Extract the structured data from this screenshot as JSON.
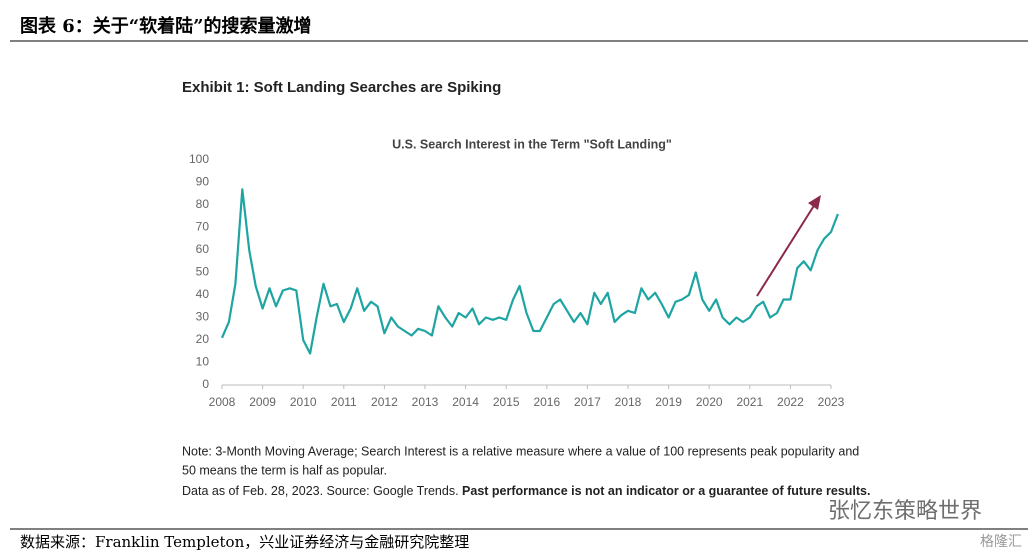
{
  "header": {
    "title": "图表 6：关于“软着陆”的搜索量激增"
  },
  "exhibit_title": "Exhibit 1: Soft Landing Searches are Spiking",
  "chart_data": {
    "type": "line",
    "title": "U.S. Search Interest in the Term \"Soft Landing\"",
    "x": [
      2008,
      2008.17,
      2008.33,
      2008.5,
      2008.67,
      2008.83,
      2009,
      2009.17,
      2009.33,
      2009.5,
      2009.67,
      2009.83,
      2010,
      2010.17,
      2010.33,
      2010.5,
      2010.67,
      2010.83,
      2011,
      2011.17,
      2011.33,
      2011.5,
      2011.67,
      2011.83,
      2012,
      2012.17,
      2012.33,
      2012.5,
      2012.67,
      2012.83,
      2013,
      2013.17,
      2013.33,
      2013.5,
      2013.67,
      2013.83,
      2014,
      2014.17,
      2014.33,
      2014.5,
      2014.67,
      2014.83,
      2015,
      2015.17,
      2015.33,
      2015.5,
      2015.67,
      2015.83,
      2016,
      2016.17,
      2016.33,
      2016.5,
      2016.67,
      2016.83,
      2017,
      2017.17,
      2017.33,
      2017.5,
      2017.67,
      2017.83,
      2018,
      2018.17,
      2018.33,
      2018.5,
      2018.67,
      2018.83,
      2019,
      2019.17,
      2019.33,
      2019.5,
      2019.67,
      2019.83,
      2020,
      2020.17,
      2020.33,
      2020.5,
      2020.67,
      2020.83,
      2021,
      2021.17,
      2021.33,
      2021.5,
      2021.67,
      2021.83,
      2022,
      2022.17,
      2022.33,
      2022.5,
      2022.67,
      2022.83,
      2023,
      2023.17
    ],
    "values": [
      21,
      28,
      45,
      87,
      60,
      44,
      34,
      43,
      35,
      42,
      43,
      42,
      20,
      14,
      30,
      45,
      35,
      36,
      28,
      34,
      43,
      33,
      37,
      35,
      23,
      30,
      26,
      24,
      22,
      25,
      24,
      22,
      35,
      30,
      26,
      32,
      30,
      34,
      27,
      30,
      29,
      30,
      29,
      38,
      44,
      32,
      24,
      24,
      30,
      36,
      38,
      33,
      28,
      32,
      27,
      41,
      36,
      41,
      28,
      31,
      33,
      32,
      43,
      38,
      41,
      36,
      30,
      37,
      38,
      40,
      50,
      38,
      33,
      38,
      30,
      27,
      30,
      28,
      30,
      35,
      37,
      30,
      32,
      38,
      38,
      52,
      55,
      51,
      60,
      65,
      68,
      76
    ],
    "color": "#1ea5a3",
    "xlim": [
      2008,
      2023
    ],
    "xticks": [
      2008,
      2009,
      2010,
      2011,
      2012,
      2013,
      2014,
      2015,
      2016,
      2017,
      2018,
      2019,
      2020,
      2021,
      2022,
      2023
    ],
    "ylim": [
      0,
      100
    ],
    "yticks": [
      0,
      10,
      20,
      30,
      40,
      50,
      60,
      70,
      80,
      90,
      100
    ],
    "grid": false
  },
  "notes": [
    "Note: 3-Month Moving Average; Search Interest is a relative measure where a value of 100 represents peak popularity and",
    "50 means the term is half as popular."
  ],
  "data_source": "Data as of Feb. 28, 2023. Source: Google Trends.",
  "disclaimer": "Past performance is not an indicator or a guarantee of future results.",
  "source": "数据来源：Franklin Templeton，兴业证券经济与金融研究院整理",
  "watermark": "张忆东策略世界",
  "logo": "格隆汇"
}
